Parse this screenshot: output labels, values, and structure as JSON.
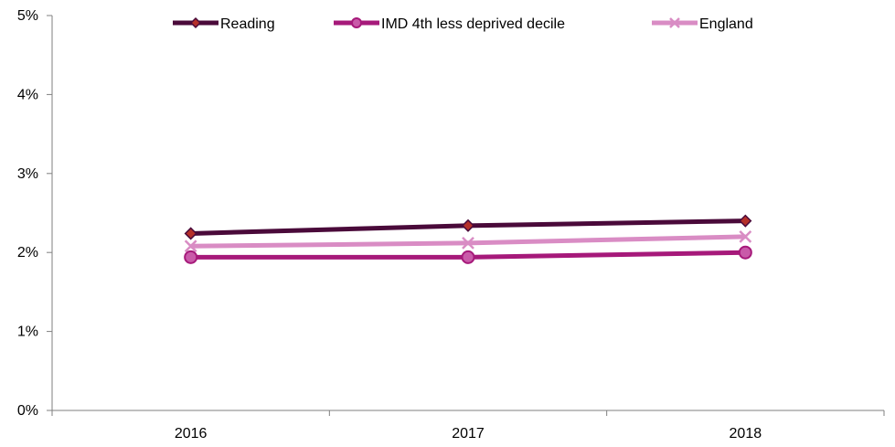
{
  "chart_data": {
    "type": "line",
    "title": "",
    "xlabel": "",
    "ylabel": "",
    "categories": [
      "2016",
      "2017",
      "2018"
    ],
    "ylim": [
      0,
      5
    ],
    "yticks": [
      "0%",
      "1%",
      "2%",
      "3%",
      "4%",
      "5%"
    ],
    "grid": false,
    "legend": "top",
    "series": [
      {
        "name": "Reading",
        "values": [
          2.24,
          2.34,
          2.4
        ],
        "color": "#4a0a3a",
        "marker": "diamond"
      },
      {
        "name": "IMD 4th less deprived decile",
        "values": [
          1.94,
          1.94,
          2.0
        ],
        "color": "#a6197a",
        "marker": "circle"
      },
      {
        "name": "England",
        "values": [
          2.08,
          2.12,
          2.2
        ],
        "color": "#d98cc4",
        "marker": "x"
      }
    ]
  }
}
